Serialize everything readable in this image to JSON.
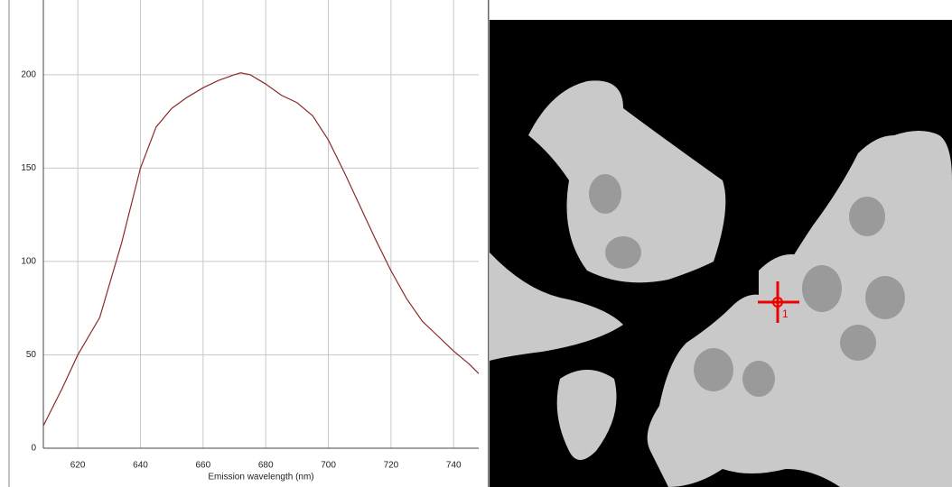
{
  "chart_data": {
    "type": "line",
    "xlabel": "Emission wavelength (nm)",
    "x": [
      609,
      615,
      620,
      627,
      634,
      640,
      645,
      650,
      655,
      660,
      665,
      670,
      672,
      675,
      680,
      685,
      690,
      695,
      700,
      705,
      710,
      715,
      720,
      725,
      730,
      735,
      740,
      745,
      748
    ],
    "series": [
      {
        "color": "#8b2a2a",
        "values": [
          12,
          32,
          50,
          70,
          110,
          150,
          172,
          182,
          188,
          193,
          197,
          200,
          201,
          200,
          195,
          189,
          185,
          178,
          165,
          148,
          130,
          112,
          95,
          80,
          68,
          60,
          52,
          45,
          40
        ]
      }
    ],
    "xlim": [
      609,
      748
    ],
    "xticks": [
      620,
      640,
      660,
      680,
      700,
      720,
      740
    ],
    "ylim": [
      0,
      240
    ],
    "yticks": [
      0,
      50,
      100,
      150,
      200
    ],
    "grid": true
  },
  "image": {
    "marker_label": "1"
  }
}
